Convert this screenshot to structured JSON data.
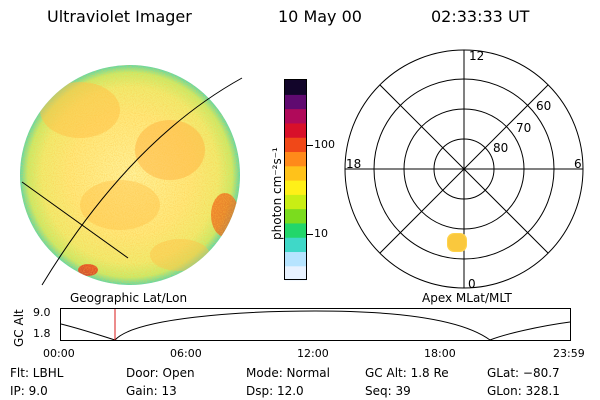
{
  "header": {
    "instrument": "Ultraviolet Imager",
    "date": "10 May 00",
    "time": "02:33:33 UT"
  },
  "colorbar": {
    "unit_label": "photon cm⁻²s⁻¹",
    "tick_100": "100",
    "tick_10": "10",
    "colors": [
      "#e8f2ff",
      "#b6e4ff",
      "#3fd8c8",
      "#22d66a",
      "#7bdc1e",
      "#c9ee14",
      "#fff018",
      "#ffc21a",
      "#ff8a1a",
      "#f04818",
      "#d8102a",
      "#b00a5a",
      "#600a70",
      "#12052a"
    ]
  },
  "left_panel": {
    "label": "Geographic Lat/Lon"
  },
  "polar_plot": {
    "label": "Apex MLat/MLT",
    "mlt_top": "12",
    "mlt_left": "18",
    "mlt_right": "6",
    "mlt_bottom": "0",
    "lat_60": "60",
    "lat_70": "70",
    "lat_80": "80"
  },
  "altitude_track": {
    "y_label": "GC Alt",
    "y_ticks": [
      "9.0",
      "1.8"
    ],
    "x_ticks": [
      "00:00",
      "06:00",
      "12:00",
      "18:00",
      "23:59"
    ],
    "marker_color": "#d81818"
  },
  "info": {
    "flt": "Flt:  LBHL",
    "ip": "IP:  9.0",
    "door": "Door:  Open",
    "gain": "Gain:  13",
    "mode": "Mode:  Normal",
    "dsp": "Dsp:    12.0",
    "gc_alt": "GC Alt:  1.8 Re",
    "seq": "Seq:  39",
    "glat": "GLat:  −80.7",
    "glon": "GLon:  328.1"
  }
}
